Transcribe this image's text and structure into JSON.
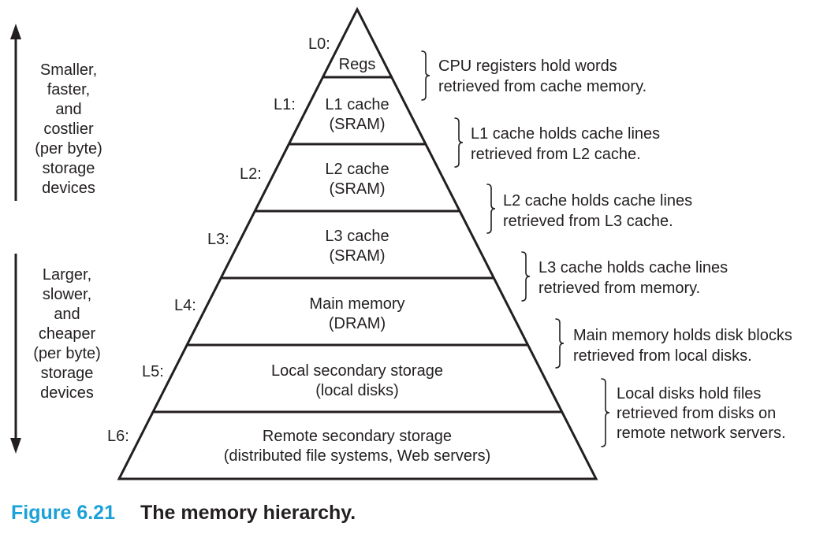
{
  "left_top": [
    "Smaller,",
    "faster,",
    "and",
    "costlier",
    "(per byte)",
    "storage",
    "devices"
  ],
  "left_bottom": [
    "Larger,",
    "slower,",
    "and",
    "cheaper",
    "(per byte)",
    "storage",
    "devices"
  ],
  "levels": [
    {
      "id": "L0:",
      "lines": [
        "Regs"
      ]
    },
    {
      "id": "L1:",
      "lines": [
        "L1 cache",
        "(SRAM)"
      ]
    },
    {
      "id": "L2:",
      "lines": [
        "L2 cache",
        "(SRAM)"
      ]
    },
    {
      "id": "L3:",
      "lines": [
        "L3 cache",
        "(SRAM)"
      ]
    },
    {
      "id": "L4:",
      "lines": [
        "Main memory",
        "(DRAM)"
      ]
    },
    {
      "id": "L5:",
      "lines": [
        "Local secondary storage",
        "(local disks)"
      ]
    },
    {
      "id": "L6:",
      "lines": [
        "Remote secondary storage",
        "(distributed file systems, Web servers)"
      ]
    }
  ],
  "notes": [
    [
      "CPU registers hold words",
      "retrieved from cache memory."
    ],
    [
      "L1 cache holds cache lines",
      "retrieved from L2 cache."
    ],
    [
      "L2 cache holds cache lines",
      "retrieved from L3 cache."
    ],
    [
      "L3 cache holds cache lines",
      "retrieved from memory."
    ],
    [
      "Main memory holds disk blocks",
      "retrieved from local disks."
    ],
    [
      "Local disks hold files",
      "retrieved from disks on",
      "remote network servers."
    ]
  ],
  "caption": {
    "figure": "Figure 6.21",
    "title": "The memory hierarchy."
  }
}
